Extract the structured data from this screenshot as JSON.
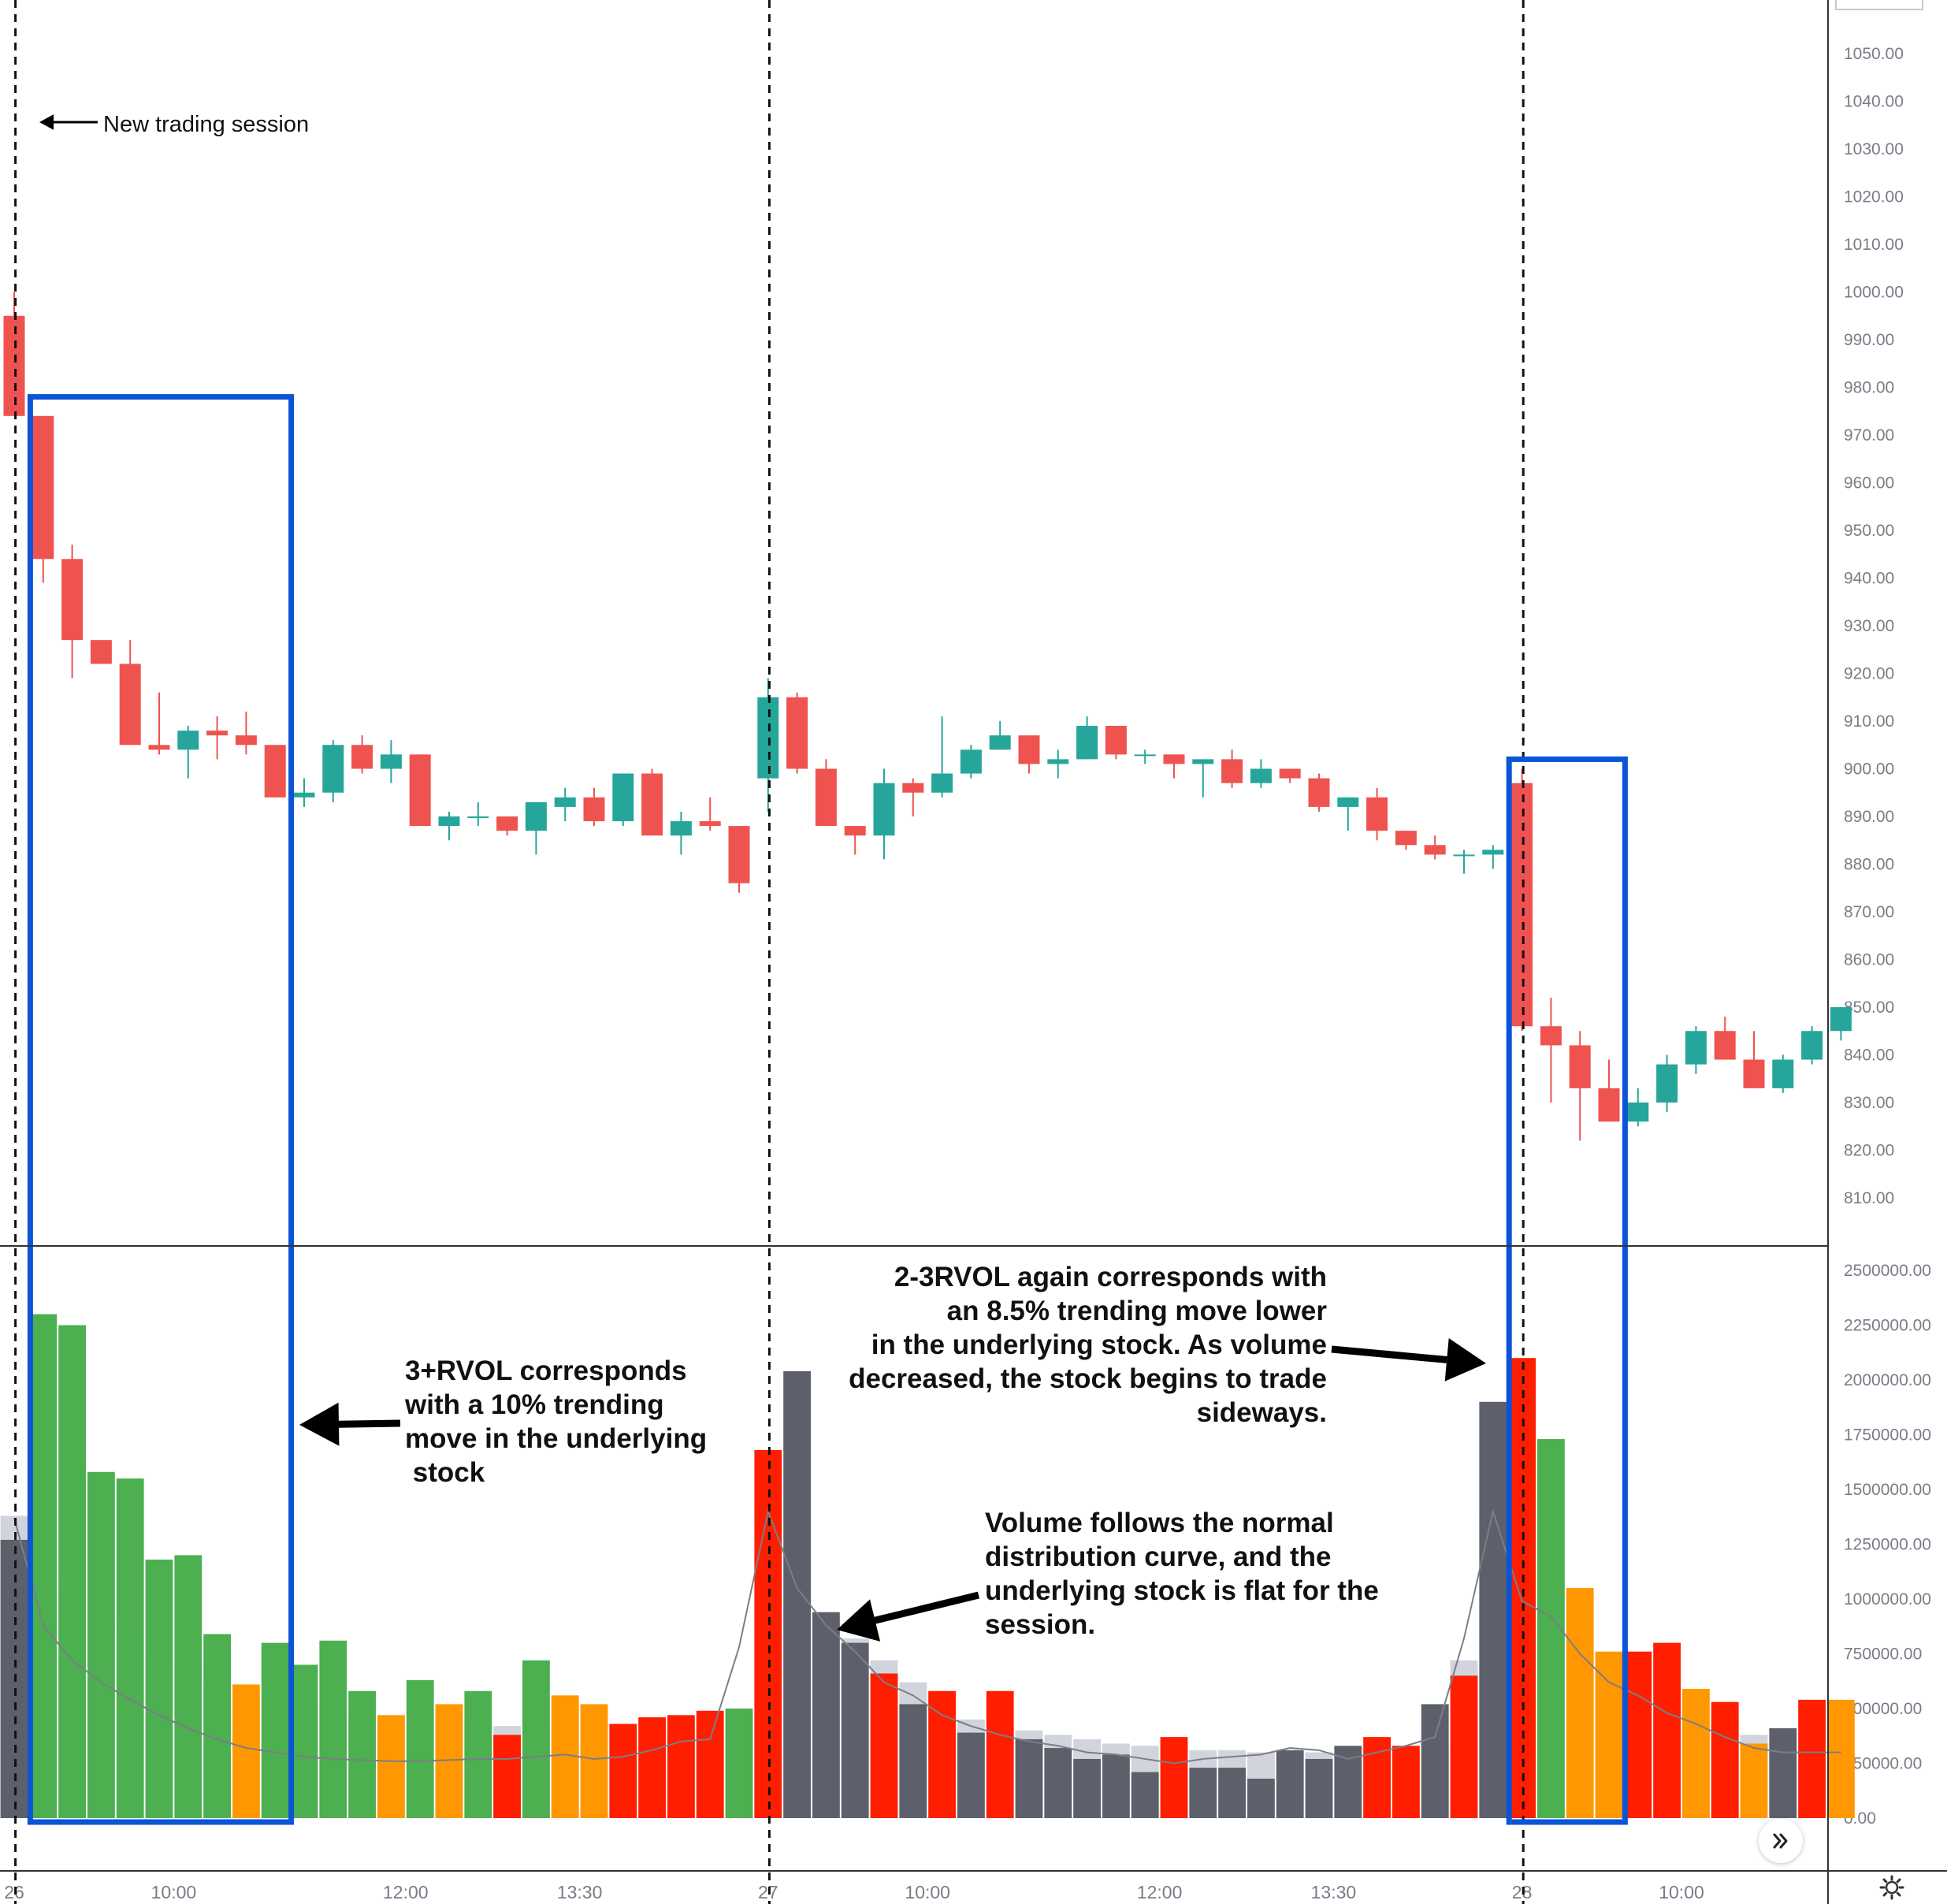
{
  "chart_data": {
    "type": "candlestick",
    "price_axis": {
      "ticks": [
        "1050.00",
        "1040.00",
        "1030.00",
        "1020.00",
        "1010.00",
        "1000.00",
        "990.00",
        "980.00",
        "970.00",
        "960.00",
        "950.00",
        "940.00",
        "930.00",
        "920.00",
        "910.00",
        "900.00",
        "890.00",
        "880.00",
        "870.00",
        "860.00",
        "850.00",
        "840.00",
        "830.00",
        "820.00",
        "810.00"
      ],
      "range": [
        802,
        1062
      ]
    },
    "volume_axis": {
      "ticks": [
        "2500000.00",
        "2250000.00",
        "2000000.00",
        "1750000.00",
        "1500000.00",
        "1250000.00",
        "1000000.00",
        "750000.00",
        "500000.00",
        "250000.00",
        "0.00"
      ],
      "range": [
        0,
        2500000
      ]
    },
    "time_labels": [
      {
        "i": 0,
        "label": "26"
      },
      {
        "i": 5.5,
        "label": "10:00"
      },
      {
        "i": 13.5,
        "label": "12:00"
      },
      {
        "i": 19.5,
        "label": "13:30"
      },
      {
        "i": 26,
        "label": "27"
      },
      {
        "i": 31.5,
        "label": "10:00"
      },
      {
        "i": 39.5,
        "label": "12:00"
      },
      {
        "i": 45.5,
        "label": "13:30"
      },
      {
        "i": 52,
        "label": "28"
      },
      {
        "i": 57.5,
        "label": "10:00"
      }
    ],
    "session_starts": [
      0,
      26,
      52
    ],
    "candles": [
      [
        995,
        1000,
        974,
        974
      ],
      [
        974,
        974,
        939,
        944
      ],
      [
        944,
        947,
        919,
        927
      ],
      [
        927,
        927,
        922,
        922
      ],
      [
        922,
        927,
        905,
        905
      ],
      [
        905,
        916,
        903,
        904
      ],
      [
        904,
        909,
        898,
        908
      ],
      [
        908,
        911,
        902,
        907
      ],
      [
        907,
        912,
        903,
        905
      ],
      [
        905,
        905,
        894,
        894
      ],
      [
        894,
        898,
        892,
        895
      ],
      [
        895,
        906,
        893,
        905
      ],
      [
        905,
        907,
        899,
        900
      ],
      [
        900,
        906,
        897,
        903
      ],
      [
        903,
        903,
        888,
        888
      ],
      [
        888,
        891,
        885,
        890
      ],
      [
        890,
        893,
        888,
        890
      ],
      [
        890,
        890,
        886,
        887
      ],
      [
        887,
        892,
        882,
        893
      ],
      [
        892,
        896,
        889,
        894
      ],
      [
        894,
        896,
        888,
        889
      ],
      [
        889,
        899,
        888,
        899
      ],
      [
        899,
        900,
        886,
        886
      ],
      [
        886,
        891,
        882,
        889
      ],
      [
        889,
        894,
        887,
        888
      ],
      [
        888,
        888,
        874,
        876
      ],
      [
        898,
        919,
        891,
        915
      ],
      [
        915,
        916,
        899,
        900
      ],
      [
        900,
        902,
        888,
        888
      ],
      [
        888,
        888,
        882,
        886
      ],
      [
        886,
        900,
        881,
        897
      ],
      [
        897,
        898,
        890,
        895
      ],
      [
        895,
        911,
        894,
        899
      ],
      [
        899,
        905,
        898,
        904
      ],
      [
        904,
        910,
        904,
        907
      ],
      [
        907,
        907,
        899,
        901
      ],
      [
        901,
        904,
        898,
        902
      ],
      [
        902,
        911,
        902,
        909
      ],
      [
        909,
        909,
        902,
        903
      ],
      [
        903,
        904,
        901,
        903
      ],
      [
        903,
        903,
        898,
        901
      ],
      [
        901,
        902,
        894,
        902
      ],
      [
        902,
        904,
        896,
        897
      ],
      [
        897,
        902,
        896,
        900
      ],
      [
        900,
        900,
        897,
        898
      ],
      [
        898,
        899,
        891,
        892
      ],
      [
        892,
        894,
        887,
        894
      ],
      [
        894,
        896,
        885,
        887
      ],
      [
        887,
        887,
        883,
        884
      ],
      [
        884,
        886,
        881,
        882
      ],
      [
        882,
        883,
        878,
        882
      ],
      [
        882,
        884,
        879,
        883
      ],
      [
        897,
        900,
        845,
        846
      ],
      [
        846,
        852,
        830,
        842
      ],
      [
        842,
        845,
        822,
        833
      ],
      [
        833,
        839,
        826,
        826
      ],
      [
        826,
        833,
        825,
        830
      ],
      [
        830,
        840,
        828,
        838
      ],
      [
        838,
        846,
        836,
        845
      ],
      [
        845,
        848,
        839,
        839
      ],
      [
        839,
        845,
        833,
        833
      ],
      [
        833,
        840,
        832,
        839
      ],
      [
        839,
        846,
        838,
        845
      ],
      [
        845,
        850,
        843,
        850
      ]
    ],
    "volume_colors": [
      "#5d606a",
      "#4caf50",
      "#4caf50",
      "#4caf50",
      "#4caf50",
      "#4caf50",
      "#4caf50",
      "#4caf50",
      "#ff9800",
      "#4caf50",
      "#4caf50",
      "#4caf50",
      "#4caf50",
      "#ff9800",
      "#4caf50",
      "#ff9800",
      "#4caf50",
      "#ff1e00",
      "#4caf50",
      "#ff9800",
      "#ff9800",
      "#ff1e00",
      "#ff1e00",
      "#ff1e00",
      "#ff1e00",
      "#4caf50",
      "#ff1e00",
      "#5d606a",
      "#5d606a",
      "#5d606a",
      "#ff1e00",
      "#5d606a",
      "#ff1e00",
      "#5d606a",
      "#ff1e00",
      "#5d606a",
      "#5d606a",
      "#5d606a",
      "#5d606a",
      "#5d606a",
      "#ff1e00",
      "#5d606a",
      "#5d606a",
      "#5d606a",
      "#5d606a",
      "#5d606a",
      "#5d606a",
      "#ff1e00",
      "#ff1e00",
      "#5d606a",
      "#ff1e00",
      "#5d606a",
      "#ff1e00",
      "#4caf50",
      "#ff9800",
      "#ff9800",
      "#ff1e00",
      "#ff1e00",
      "#ff9800",
      "#ff1e00",
      "#ff9800",
      "#5d606a",
      "#ff1e00",
      "#ff9800"
    ],
    "volume": [
      1270000,
      2300000,
      2250000,
      1580000,
      1550000,
      1180000,
      1200000,
      840000,
      610000,
      800000,
      700000,
      810000,
      580000,
      470000,
      630000,
      520000,
      580000,
      380000,
      720000,
      560000,
      520000,
      430000,
      460000,
      470000,
      490000,
      500000,
      1680000,
      2040000,
      940000,
      800000,
      660000,
      520000,
      580000,
      390000,
      580000,
      360000,
      320000,
      270000,
      290000,
      210000,
      370000,
      230000,
      230000,
      180000,
      310000,
      270000,
      330000,
      370000,
      330000,
      520000,
      650000,
      1900000,
      2100000,
      1730000,
      1050000,
      760000,
      760000,
      800000,
      590000,
      530000,
      340000,
      410000,
      540000,
      540000
    ],
    "volume_avg": [
      1380000,
      1120000,
      1000000,
      900000,
      820000,
      760000,
      700000,
      620000,
      560000,
      520000,
      490000,
      470000,
      460000,
      450000,
      440000,
      430000,
      430000,
      420000,
      420000,
      410000,
      410000,
      400000,
      400000,
      400000,
      400000,
      410000,
      1020000,
      970000,
      900000,
      820000,
      720000,
      620000,
      560000,
      450000,
      430000,
      400000,
      380000,
      360000,
      340000,
      330000,
      320000,
      310000,
      310000,
      300000,
      300000,
      300000,
      290000,
      290000,
      290000,
      330000,
      720000,
      1380000,
      960000,
      880000,
      740000,
      620000,
      560000,
      520000,
      470000,
      420000,
      380000,
      350000,
      330000,
      320000
    ],
    "avg_line": [
      1370000,
      880000,
      720000,
      620000,
      540000,
      470000,
      410000,
      360000,
      320000,
      300000,
      280000,
      270000,
      265000,
      260000,
      260000,
      265000,
      270000,
      270000,
      280000,
      290000,
      270000,
      280000,
      310000,
      350000,
      360000,
      780000,
      1400000,
      1050000,
      880000,
      760000,
      620000,
      560000,
      470000,
      420000,
      380000,
      350000,
      330000,
      300000,
      290000,
      270000,
      250000,
      270000,
      280000,
      290000,
      320000,
      310000,
      270000,
      300000,
      330000,
      370000,
      820000,
      1400000,
      990000,
      920000,
      750000,
      620000,
      560000,
      480000,
      430000,
      370000,
      320000,
      300000,
      300000,
      300000
    ],
    "annotations": [
      {
        "id": "new-session",
        "text": "New trading session"
      },
      {
        "id": "rvol-3",
        "lines": [
          "3+RVOL corresponds",
          "with a 10% trending",
          "move in the underlying",
          " stock"
        ]
      },
      {
        "id": "rvol-2-3",
        "lines": [
          "2-3RVOL again corresponds with",
          "an 8.5% trending move lower",
          "in the underlying stock. As volume",
          "decreased, the stock begins to trade",
          "sideways."
        ]
      },
      {
        "id": "normal-curve",
        "lines": [
          "Volume follows the normal",
          "distribution curve, and the",
          "underlying stock is flat for the",
          "session."
        ]
      }
    ],
    "highlight_boxes": [
      {
        "from": 1,
        "to": 9,
        "price_top": 978
      },
      {
        "from": 52,
        "to": 55,
        "price_top": 902
      }
    ]
  },
  "colors": {
    "up": "#26a69a",
    "down": "#ef5350",
    "box": "#0a54d6",
    "volume_avg_bar": "#d1d4dc",
    "avg_line": "#7b7e87",
    "axis_text": "#777d87"
  },
  "icons": {
    "scroll": "double-chevron-right-icon",
    "settings": "gear-icon"
  }
}
